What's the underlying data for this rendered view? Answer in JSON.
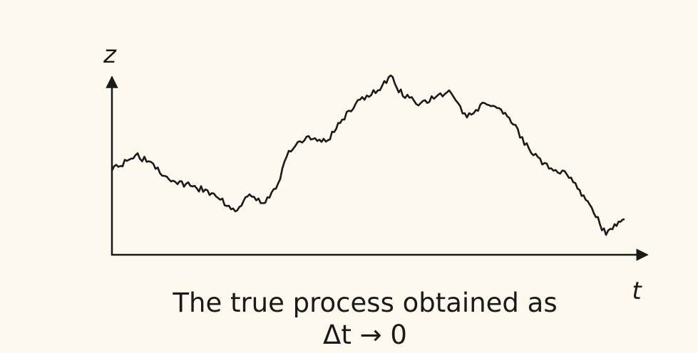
{
  "axis_labels": {
    "y": "z",
    "x": "t"
  },
  "caption": {
    "line1": "The true process obtained as",
    "line2": "Δt → 0"
  }
}
